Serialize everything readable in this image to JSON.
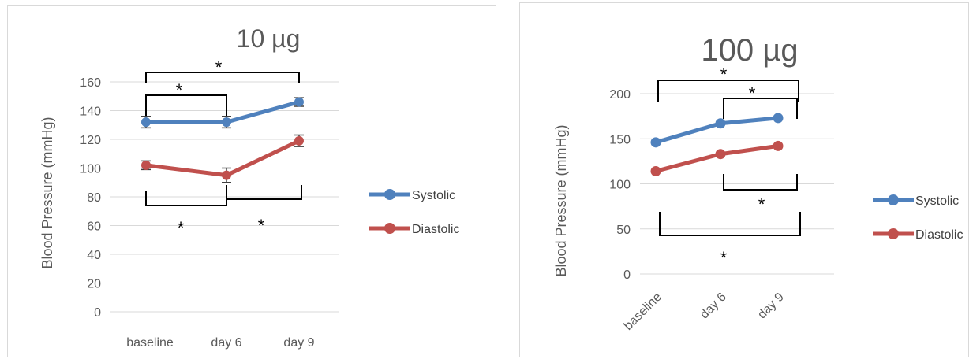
{
  "chart_data": [
    {
      "type": "line",
      "title": "10 µg",
      "ylabel": "Blood Pressure (mmHg)",
      "xlabel": "",
      "categories": [
        "baseline",
        "day 6",
        "day 9"
      ],
      "ylim": [
        0,
        160
      ],
      "yticks": [
        0,
        20,
        40,
        60,
        80,
        100,
        120,
        140,
        160
      ],
      "grid": true,
      "legend": "right",
      "series": [
        {
          "name": "Systolic",
          "values": [
            132,
            132,
            146
          ],
          "errors": [
            4,
            4,
            3
          ],
          "color": "#4F81BD"
        },
        {
          "name": "Diastolic",
          "values": [
            102,
            95,
            119
          ],
          "errors": [
            3,
            5,
            4
          ],
          "color": "#C0504D"
        }
      ],
      "annotations": [
        "*",
        "*",
        "*",
        "*"
      ]
    },
    {
      "type": "line",
      "title": "100 µg",
      "ylabel": "Blood Pressure (mmHg)",
      "xlabel": "",
      "categories": [
        "baseline",
        "day 6",
        "day 9"
      ],
      "ylim": [
        0,
        200
      ],
      "yticks": [
        0,
        50,
        100,
        150,
        200
      ],
      "grid": true,
      "legend": "right",
      "series": [
        {
          "name": "Systolic",
          "values": [
            146,
            167,
            173
          ],
          "color": "#4F81BD"
        },
        {
          "name": "Diastolic",
          "values": [
            114,
            133,
            142
          ],
          "color": "#C0504D"
        }
      ],
      "annotations": [
        "*",
        "*",
        "*",
        "*"
      ]
    }
  ]
}
